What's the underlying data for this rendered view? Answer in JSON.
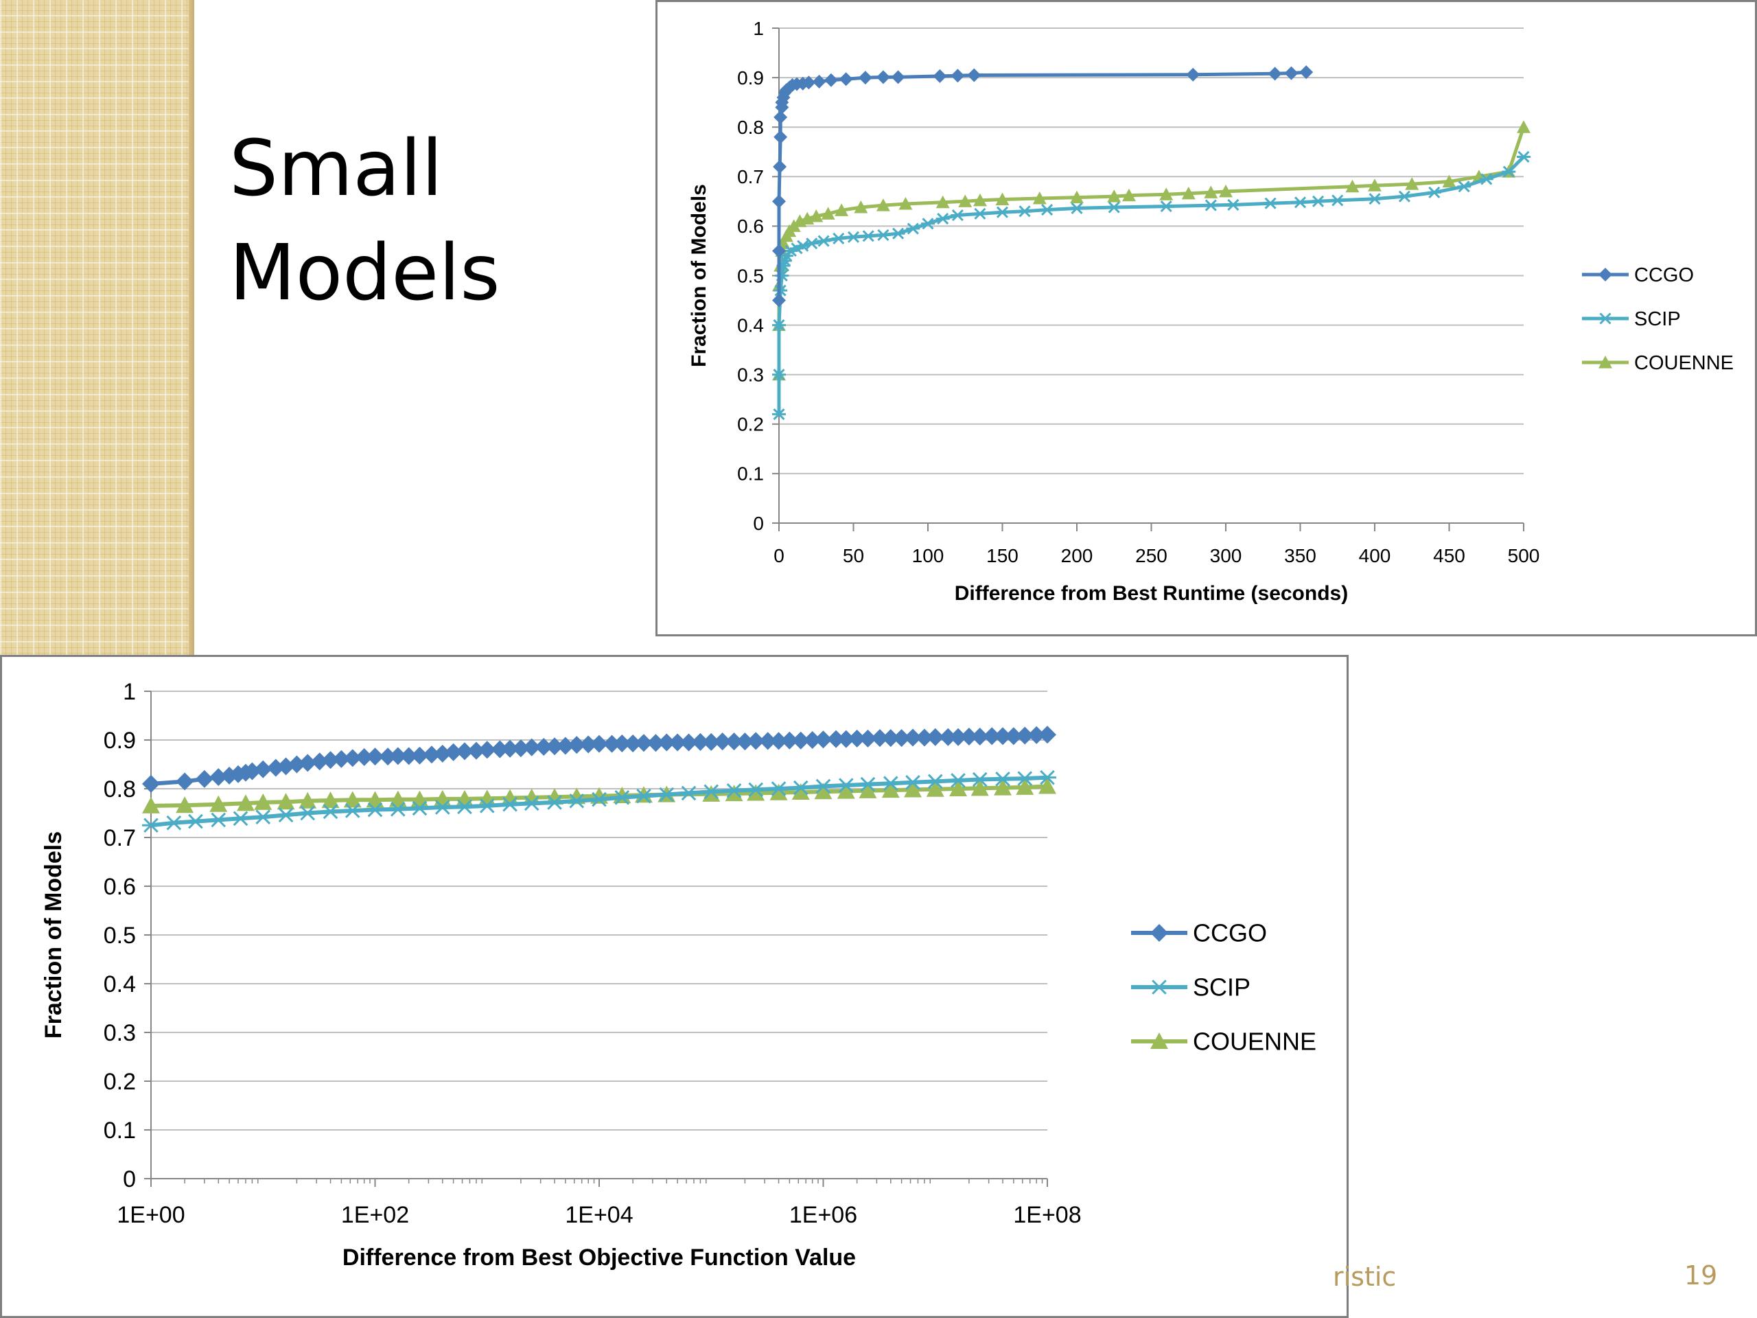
{
  "slide": {
    "title_line1": "Small",
    "title_line2": "Models",
    "footer_text": "ristic",
    "page_number": "19"
  },
  "colors": {
    "ccgo": "#4a7ebb",
    "scip": "#4bacc6",
    "couenne": "#9bbb59",
    "grid": "#bfbfbf",
    "axis": "#868686",
    "accent_strip": "#e8d6a3"
  },
  "chart_data": [
    {
      "type": "line",
      "title": "",
      "xlabel": "Difference from Best Runtime (seconds)",
      "ylabel": "Fraction of Models",
      "xlim": [
        0,
        500
      ],
      "ylim": [
        0,
        1
      ],
      "x_ticks": [
        "0",
        "50",
        "100",
        "150",
        "200",
        "250",
        "300",
        "350",
        "400",
        "450",
        "500"
      ],
      "y_ticks": [
        "0",
        "0.1",
        "0.2",
        "0.3",
        "0.4",
        "0.5",
        "0.6",
        "0.7",
        "0.8",
        "0.9",
        "1"
      ],
      "grid": true,
      "legend_position": "right",
      "series": [
        {
          "name": "CCGO",
          "marker": "diamond",
          "x": [
            0,
            0,
            0,
            0.5,
            1,
            1,
            2,
            2,
            3,
            4,
            5,
            7,
            9,
            12,
            16,
            20,
            27,
            35,
            45,
            58,
            70,
            80,
            108,
            120,
            131,
            278,
            333,
            344,
            354
          ],
          "y": [
            0.45,
            0.55,
            0.65,
            0.72,
            0.78,
            0.82,
            0.84,
            0.85,
            0.86,
            0.87,
            0.875,
            0.88,
            0.885,
            0.887,
            0.888,
            0.89,
            0.892,
            0.895,
            0.897,
            0.9,
            0.901,
            0.901,
            0.903,
            0.904,
            0.905,
            0.906,
            0.908,
            0.909,
            0.911
          ]
        },
        {
          "name": "SCIP",
          "marker": "star",
          "x": [
            0,
            0,
            0,
            1,
            2,
            3,
            4,
            5,
            8,
            12,
            16,
            22,
            30,
            40,
            50,
            60,
            70,
            80,
            90,
            100,
            110,
            120,
            135,
            150,
            165,
            180,
            200,
            225,
            260,
            290,
            305,
            330,
            350,
            362,
            375,
            400,
            420,
            440,
            460,
            475,
            490,
            500
          ],
          "y": [
            0.22,
            0.3,
            0.4,
            0.47,
            0.5,
            0.52,
            0.53,
            0.54,
            0.55,
            0.555,
            0.56,
            0.565,
            0.57,
            0.575,
            0.578,
            0.58,
            0.582,
            0.585,
            0.595,
            0.605,
            0.615,
            0.622,
            0.625,
            0.628,
            0.63,
            0.633,
            0.636,
            0.638,
            0.64,
            0.642,
            0.643,
            0.646,
            0.648,
            0.65,
            0.652,
            0.655,
            0.66,
            0.668,
            0.68,
            0.695,
            0.71,
            0.74
          ]
        },
        {
          "name": "COUENNE",
          "marker": "triangle",
          "x": [
            0,
            0,
            0,
            1,
            2,
            3,
            5,
            7,
            10,
            14,
            19,
            25,
            33,
            42,
            55,
            70,
            85,
            110,
            125,
            135,
            150,
            175,
            200,
            225,
            235,
            260,
            275,
            290,
            300,
            385,
            400,
            425,
            450,
            470,
            490,
            500
          ],
          "y": [
            0.3,
            0.4,
            0.48,
            0.52,
            0.55,
            0.565,
            0.58,
            0.59,
            0.6,
            0.61,
            0.615,
            0.62,
            0.625,
            0.632,
            0.638,
            0.642,
            0.645,
            0.648,
            0.65,
            0.652,
            0.654,
            0.656,
            0.658,
            0.66,
            0.662,
            0.664,
            0.666,
            0.668,
            0.67,
            0.68,
            0.682,
            0.685,
            0.69,
            0.7,
            0.71,
            0.8
          ]
        }
      ]
    },
    {
      "type": "line",
      "title": "",
      "xlabel": "Difference from Best Objective Function Value",
      "ylabel": "Fraction of Models",
      "x_scale": "log",
      "xlim": [
        1,
        100000000
      ],
      "ylim": [
        0,
        1
      ],
      "x_ticks": [
        "1E+00",
        "1E+02",
        "1E+04",
        "1E+06",
        "1E+08"
      ],
      "y_ticks": [
        "0",
        "0.1",
        "0.2",
        "0.3",
        "0.4",
        "0.5",
        "0.6",
        "0.7",
        "0.8",
        "0.9",
        "1"
      ],
      "grid": true,
      "legend_position": "right",
      "series": [
        {
          "name": "CCGO",
          "marker": "diamond",
          "x": [
            1,
            2,
            3,
            4,
            5,
            6,
            7,
            8,
            10,
            13,
            16,
            20,
            25,
            32,
            40,
            50,
            63,
            80,
            100,
            130,
            160,
            200,
            250,
            320,
            400,
            500,
            630,
            800,
            1000,
            1300,
            1600,
            2000,
            2500,
            3200,
            4000,
            5000,
            6300,
            8000,
            10000,
            13000,
            16000,
            20000,
            25000,
            32000,
            40000,
            50000,
            63000,
            80000,
            100000,
            126000,
            160000,
            200000,
            250000,
            320000,
            400000,
            500000,
            630000,
            800000,
            1000000,
            1300000,
            1600000,
            2000000,
            2500000,
            3200000,
            4000000,
            5000000,
            6300000,
            8000000,
            10000000,
            13000000,
            16000000,
            20000000,
            25000000,
            32000000,
            40000000,
            50000000,
            63000000,
            80000000,
            100000000
          ],
          "y": [
            0.81,
            0.815,
            0.82,
            0.824,
            0.827,
            0.83,
            0.833,
            0.836,
            0.84,
            0.843,
            0.846,
            0.85,
            0.853,
            0.856,
            0.859,
            0.861,
            0.863,
            0.865,
            0.866,
            0.866,
            0.867,
            0.867,
            0.868,
            0.87,
            0.872,
            0.875,
            0.877,
            0.878,
            0.88,
            0.881,
            0.882,
            0.883,
            0.885,
            0.886,
            0.887,
            0.888,
            0.89,
            0.891,
            0.892,
            0.892,
            0.893,
            0.893,
            0.894,
            0.894,
            0.895,
            0.895,
            0.895,
            0.896,
            0.896,
            0.897,
            0.897,
            0.897,
            0.898,
            0.898,
            0.898,
            0.899,
            0.899,
            0.9,
            0.901,
            0.902,
            0.902,
            0.903,
            0.903,
            0.904,
            0.904,
            0.904,
            0.905,
            0.905,
            0.906,
            0.906,
            0.906,
            0.907,
            0.907,
            0.908,
            0.908,
            0.908,
            0.909,
            0.91,
            0.911
          ]
        },
        {
          "name": "SCIP",
          "marker": "star",
          "x": [
            1,
            1.6,
            2.5,
            4,
            6.3,
            10,
            16,
            25,
            40,
            63,
            100,
            160,
            250,
            400,
            630,
            1000,
            1600,
            2500,
            4000,
            6300,
            10000,
            16000,
            25000,
            40000,
            63000,
            100000,
            160000,
            250000,
            400000,
            630000,
            1000000,
            1600000,
            2500000,
            4000000,
            6300000,
            10000000,
            16000000,
            25000000,
            40000000,
            63000000,
            100000000
          ],
          "y": [
            0.725,
            0.73,
            0.733,
            0.736,
            0.739,
            0.742,
            0.746,
            0.75,
            0.753,
            0.755,
            0.757,
            0.758,
            0.76,
            0.762,
            0.763,
            0.765,
            0.768,
            0.77,
            0.772,
            0.775,
            0.778,
            0.782,
            0.785,
            0.788,
            0.791,
            0.794,
            0.796,
            0.798,
            0.8,
            0.802,
            0.805,
            0.807,
            0.809,
            0.811,
            0.813,
            0.815,
            0.817,
            0.819,
            0.82,
            0.821,
            0.823
          ]
        },
        {
          "name": "COUENNE",
          "marker": "triangle",
          "x": [
            1,
            2,
            4,
            7,
            10,
            16,
            25,
            40,
            63,
            100,
            160,
            250,
            400,
            630,
            1000,
            1600,
            2500,
            4000,
            6300,
            10000,
            16000,
            25000,
            40000,
            100000,
            160000,
            250000,
            400000,
            630000,
            1000000,
            1600000,
            2500000,
            4000000,
            6300000,
            10000000,
            16000000,
            25000000,
            40000000,
            63000000,
            100000000
          ],
          "y": [
            0.765,
            0.766,
            0.768,
            0.77,
            0.772,
            0.773,
            0.775,
            0.776,
            0.777,
            0.777,
            0.778,
            0.778,
            0.779,
            0.779,
            0.78,
            0.781,
            0.782,
            0.783,
            0.784,
            0.785,
            0.786,
            0.787,
            0.788,
            0.789,
            0.79,
            0.791,
            0.792,
            0.793,
            0.794,
            0.795,
            0.796,
            0.797,
            0.798,
            0.799,
            0.8,
            0.801,
            0.802,
            0.803,
            0.805
          ]
        }
      ]
    }
  ]
}
